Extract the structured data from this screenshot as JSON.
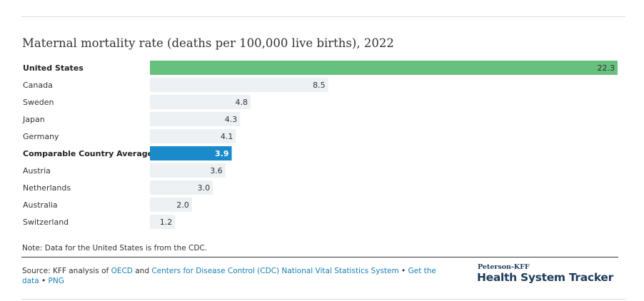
{
  "chart_data": {
    "type": "bar",
    "orientation": "horizontal",
    "title": "Maternal mortality rate (deaths per 100,000 live births), 2022",
    "categories": [
      "United States",
      "Canada",
      "Sweden",
      "Japan",
      "Germany",
      "Comparable Country Average",
      "Austria",
      "Netherlands",
      "Australia",
      "Switzerland"
    ],
    "values": [
      22.3,
      8.5,
      4.8,
      4.3,
      4.1,
      3.9,
      3.6,
      3.0,
      2.0,
      1.2
    ],
    "value_labels": [
      "22.3",
      "8.5",
      "4.8",
      "4.3",
      "4.1",
      "3.9",
      "3.6",
      "3.0",
      "2.0",
      "1.2"
    ],
    "highlight": {
      "United States": "#66c07e",
      "Comparable Country Average": "#1a8acb"
    },
    "default_bar_color": "#edf1f3",
    "bold_categories": [
      "United States",
      "Comparable Country Average"
    ],
    "xlim": [
      0,
      22.3
    ],
    "grid": false,
    "legend": "none"
  },
  "note": "Note: Data for the United States is from the CDC.",
  "source": {
    "prefix": "Source: KFF analysis of ",
    "link1": "OECD",
    "and": " and ",
    "link2": "Centers for Disease Control (CDC) National Vital Statistics System",
    "bullet1": " • ",
    "link3": "Get the data",
    "bullet2": " • ",
    "link4": "PNG"
  },
  "brand": {
    "small": "Peterson-KFF",
    "big": "Health System Tracker"
  }
}
